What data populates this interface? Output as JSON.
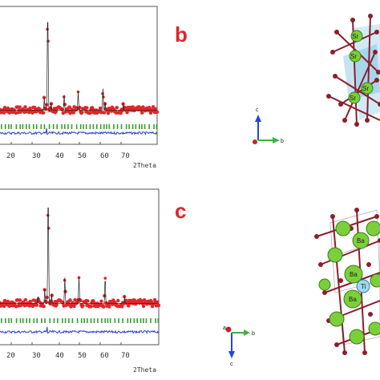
{
  "colors": {
    "observed": "#e0262a",
    "difference": "#2d3fd6",
    "bragg": "#33a02c",
    "axis_c": "#2148d8",
    "axis_b": "#3fb23f",
    "axis_a": "#c0262a",
    "atom_green": "#7ccf3a",
    "atom_red": "#8a1f2b",
    "atom_cyan": "#9fd8f0",
    "panel_letter": "#e0262a"
  },
  "panels": {
    "b": {
      "letter": "b"
    },
    "c": {
      "letter": "c"
    }
  },
  "plots": {
    "top": {
      "xlabel": "2Theta",
      "ticks": [
        "20",
        "30",
        "40",
        "50",
        "60",
        "70"
      ]
    },
    "bottom": {
      "xlabel": "2Theta",
      "ticks": [
        "20",
        "30",
        "40",
        "50",
        "60",
        "70"
      ]
    }
  },
  "structures": {
    "top": {
      "atom_labels": [
        "Sr",
        "Sr",
        "Sr",
        "Sr"
      ],
      "axes": {
        "c": "c",
        "b": "b",
        "a": ""
      }
    },
    "bottom": {
      "atom_labels": [
        "Ba",
        "Ba",
        "Ti",
        "Ba"
      ],
      "axes": {
        "a": "a",
        "b": "b",
        "c": "c"
      }
    }
  },
  "chart_data": [
    {
      "type": "line",
      "panel": "b",
      "xlabel": "2Theta",
      "xlim": [
        10,
        80
      ],
      "x_ticks": [
        20,
        30,
        40,
        50,
        60,
        70
      ],
      "series": [
        {
          "x": [
            10,
            22,
            25,
            27,
            30,
            31.5,
            33,
            38.8,
            45,
            49,
            56,
            57,
            65,
            70,
            80
          ],
          "values": [
            0.05,
            0.08,
            0.1,
            0.12,
            0.2,
            1.0,
            0.15,
            0.22,
            0.25,
            0.1,
            0.28,
            0.15,
            0.14,
            0.09,
            0.08
          ]
        }
      ]
    },
    {
      "type": "line",
      "panel": "c",
      "xlabel": "2Theta",
      "xlim": [
        10,
        80
      ],
      "x_ticks": [
        20,
        30,
        40,
        50,
        60,
        70
      ],
      "series": [
        {
          "x": [
            10,
            22,
            25,
            27,
            30,
            31.5,
            33,
            38.8,
            45,
            50,
            56.5,
            65,
            70,
            80
          ],
          "values": [
            0.05,
            0.08,
            0.12,
            0.14,
            0.2,
            1.0,
            0.16,
            0.3,
            0.3,
            0.12,
            0.3,
            0.14,
            0.1,
            0.08
          ]
        }
      ]
    }
  ]
}
